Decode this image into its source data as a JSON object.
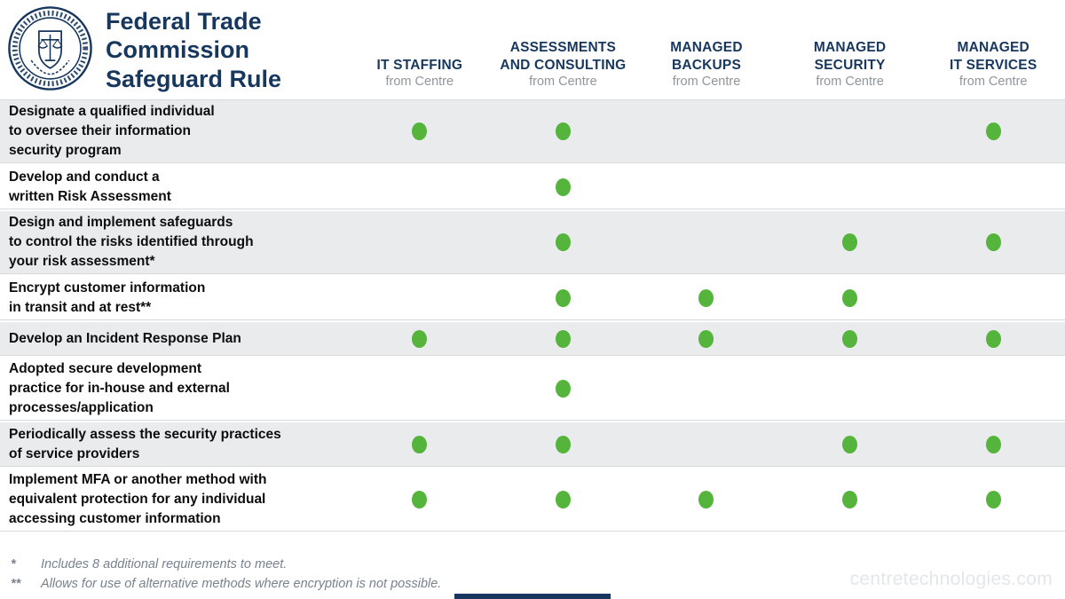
{
  "header": {
    "title_lines": [
      "Federal Trade",
      "Commission",
      "Safeguard Rule"
    ],
    "logo": "ftc-seal",
    "columns": [
      {
        "id": "it-staffing",
        "name_lines": [
          "IT STAFFING"
        ],
        "sub": "from Centre"
      },
      {
        "id": "assessments",
        "name_lines": [
          "ASSESSMENTS",
          "AND CONSULTING"
        ],
        "sub": "from Centre"
      },
      {
        "id": "backups",
        "name_lines": [
          "MANAGED",
          "BACKUPS"
        ],
        "sub": "from Centre"
      },
      {
        "id": "security",
        "name_lines": [
          "MANAGED",
          "SECURITY"
        ],
        "sub": "from Centre"
      },
      {
        "id": "it-services",
        "name_lines": [
          "MANAGED",
          "IT SERVICES"
        ],
        "sub": "from Centre"
      }
    ]
  },
  "rows": [
    {
      "label_lines": [
        "Designate a qualified individual",
        "to oversee their information",
        "security program"
      ],
      "dots": [
        true,
        true,
        false,
        false,
        true
      ]
    },
    {
      "label_lines": [
        "Develop and conduct a",
        "written Risk Assessment"
      ],
      "dots": [
        false,
        true,
        false,
        false,
        false
      ]
    },
    {
      "label_lines": [
        "Design and implement safeguards",
        "to control the risks identified through",
        "your risk assessment*"
      ],
      "dots": [
        false,
        true,
        false,
        true,
        true
      ]
    },
    {
      "label_lines": [
        "Encrypt customer information",
        "in transit and at rest**"
      ],
      "dots": [
        false,
        true,
        true,
        true,
        false
      ]
    },
    {
      "label_lines": [
        "Develop an Incident Response Plan"
      ],
      "dots": [
        true,
        true,
        true,
        true,
        true
      ]
    },
    {
      "label_lines": [
        "Adopted secure development",
        "practice for in-house and external",
        "processes/application"
      ],
      "dots": [
        false,
        true,
        false,
        false,
        false
      ]
    },
    {
      "label_lines": [
        "Periodically assess the security practices",
        "of service providers"
      ],
      "dots": [
        true,
        true,
        false,
        true,
        true
      ]
    },
    {
      "label_lines": [
        "Implement MFA or another method with",
        "equivalent protection for any individual",
        "accessing customer information"
      ],
      "dots": [
        true,
        true,
        true,
        true,
        true
      ]
    }
  ],
  "footnotes": [
    {
      "marker": "*",
      "text": "Includes 8 additional requirements to meet."
    },
    {
      "marker": "**",
      "text": "Allows for use of alternative methods where encryption is not possible."
    }
  ],
  "footer": {
    "website": "centretechnologies.com"
  },
  "colors": {
    "navy": "#17375e",
    "dot_green": "#55b43c",
    "row_shade": "#eaebed",
    "subtext_gray": "#8f969c",
    "footnote_gray": "#78828e",
    "watermark_gray": "#e4e6e9"
  }
}
